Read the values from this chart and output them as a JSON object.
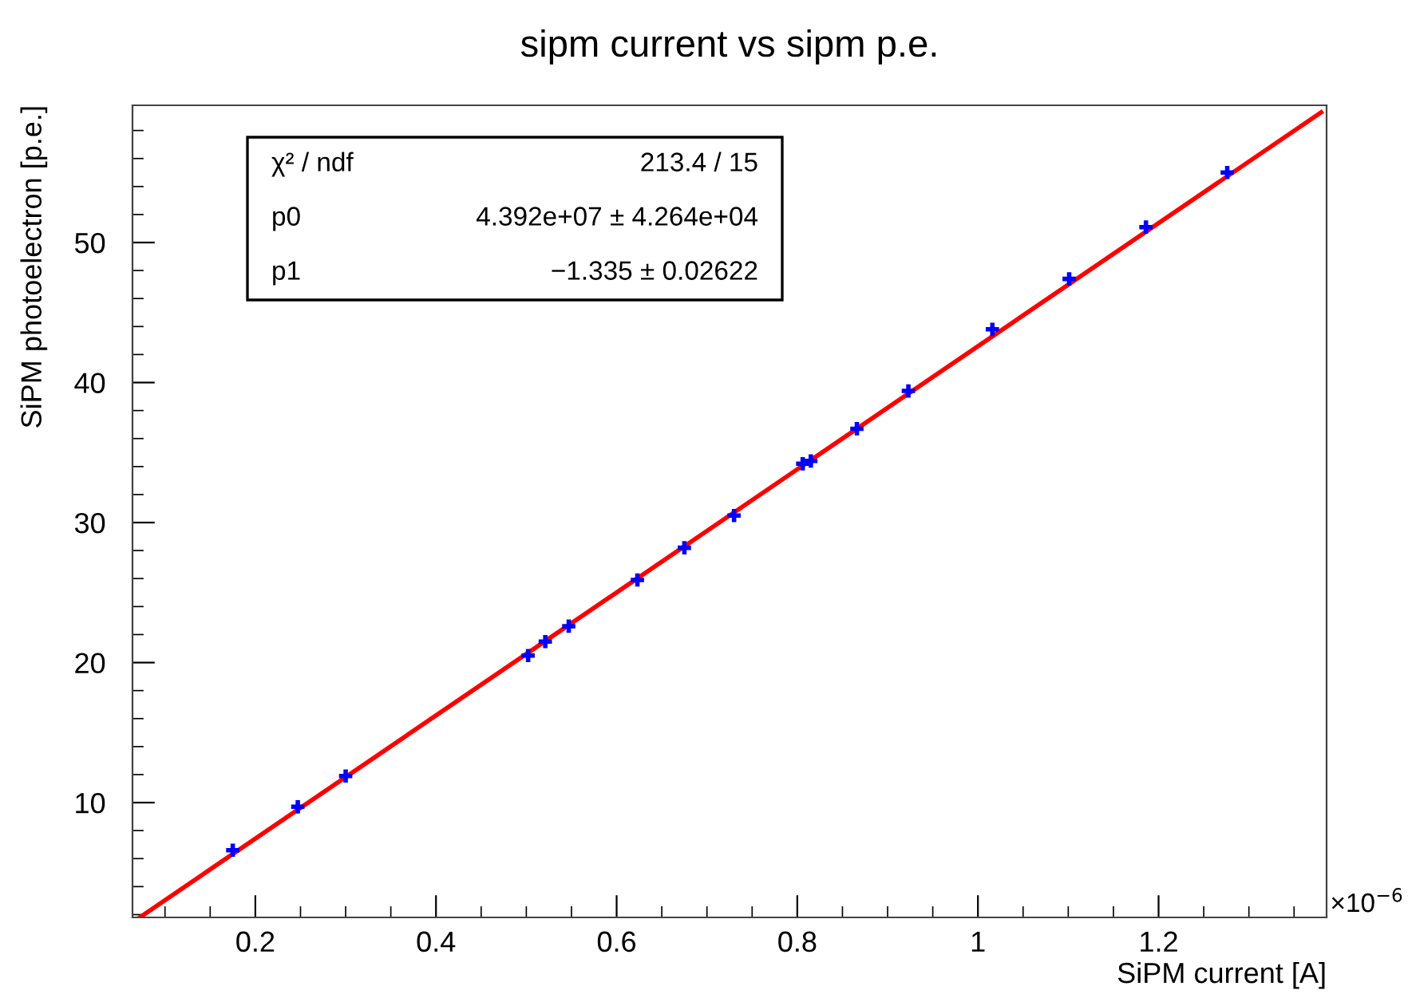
{
  "chart_data": {
    "type": "scatter",
    "title": "sipm current vs sipm p.e.",
    "xlabel": "SiPM current [A]",
    "ylabel": "SiPM photoelectron [p.e.]",
    "x": [
      0.175,
      0.247,
      0.3,
      0.502,
      0.521,
      0.547,
      0.623,
      0.675,
      0.73,
      0.806,
      0.815,
      0.866,
      0.923,
      1.016,
      1.101,
      1.186,
      1.276
    ],
    "series": [
      {
        "color": "#0000ff",
        "marker": "cross",
        "values": [
          6.6,
          9.7,
          11.9,
          20.5,
          21.5,
          22.6,
          25.9,
          28.2,
          30.5,
          34.2,
          34.4,
          36.7,
          39.4,
          43.8,
          47.4,
          51.1,
          55.0
        ]
      },
      {
        "type": "line",
        "color": "#ff0000",
        "line_style": "solid",
        "x": [
          0.072,
          1.38
        ],
        "values": [
          1.8,
          59.3
        ]
      }
    ],
    "xlim": [
      0.064,
      1.386
    ],
    "xticks": [
      0.2,
      0.4,
      0.6,
      0.8,
      1,
      1.2
    ],
    "ylim": [
      1.8,
      59.8
    ],
    "yticks": [
      10,
      20,
      30,
      40,
      50
    ],
    "grid": false,
    "annotations": [
      "×10$^{−6}$",
      "χ² / ndf",
      "213.4 / 15",
      "p0",
      "4.392e+07 ± 4.264e+04",
      "p1",
      "−1.335 ± 0.02622"
    ]
  }
}
